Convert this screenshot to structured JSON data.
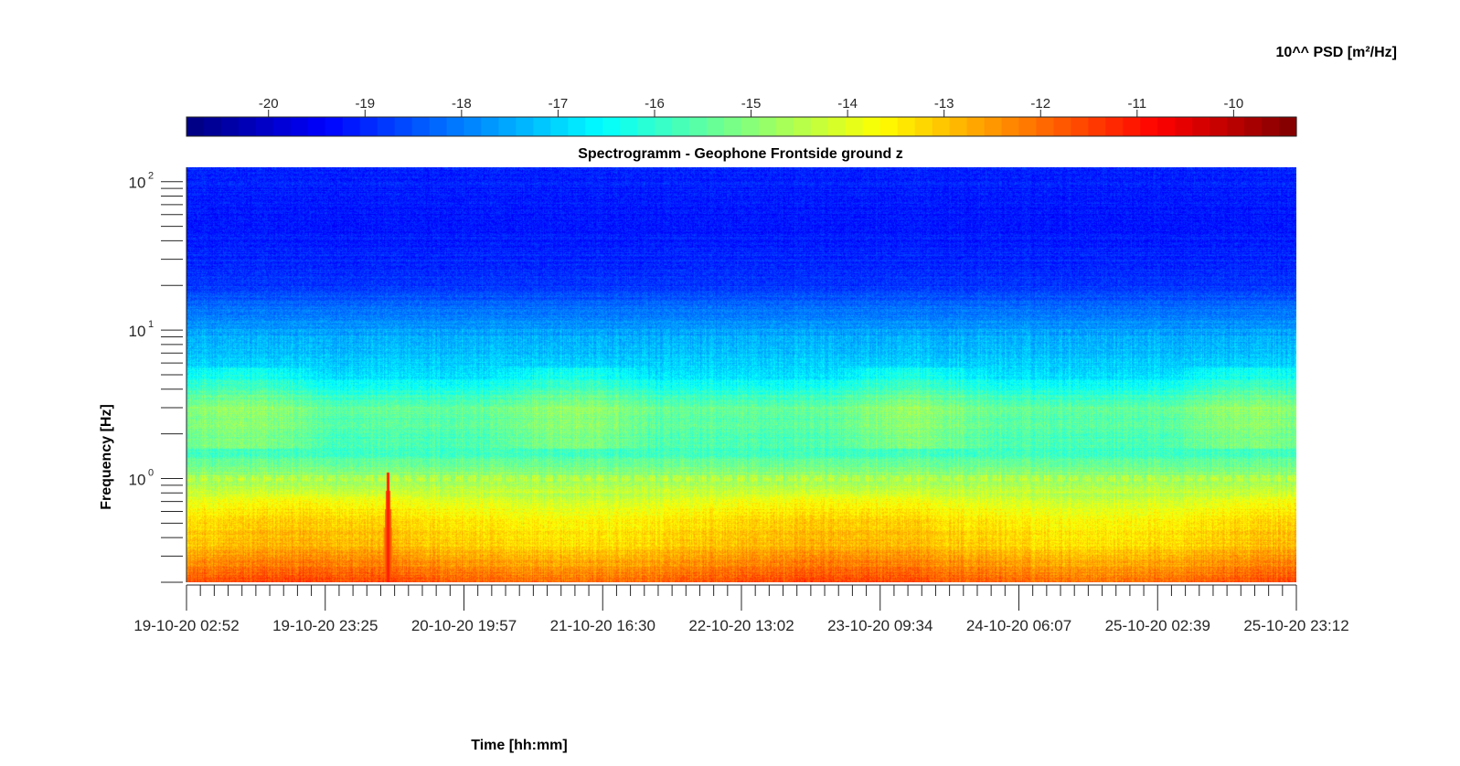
{
  "chart_data": {
    "type": "heatmap",
    "title": "Spectrogramm - Geophone Frontside ground z",
    "xlabel": "Time [hh:mm]",
    "ylabel": "Frequency [Hz]",
    "colorbar": {
      "label": "10^^ PSD [m²/Hz]",
      "ticks": [
        "-20",
        "-19",
        "-18",
        "-17",
        "-16",
        "-15",
        "-14",
        "-13",
        "-12",
        "-11",
        "-10"
      ],
      "tick_values": [
        -20,
        -19,
        -18,
        -17,
        -16,
        -15,
        -14,
        -13,
        -12,
        -11,
        -10
      ],
      "range": [
        -20.85,
        -9.35
      ],
      "colormap": "jet",
      "placement": "top"
    },
    "x_ticks": [
      "19-10-20 02:52",
      "19-10-20 23:25",
      "20-10-20 19:57",
      "21-10-20 16:30",
      "22-10-20 13:02",
      "23-10-20 09:34",
      "24-10-20 06:07",
      "25-10-20 02:39",
      "25-10-20 23:12"
    ],
    "y_axis": {
      "scale": "log",
      "range_hz": [
        0.2,
        125
      ],
      "ticks": [
        {
          "base": "10",
          "exp": "2",
          "value": 100
        },
        {
          "base": "10",
          "exp": "1",
          "value": 10
        },
        {
          "base": "10",
          "exp": "0",
          "value": 1
        }
      ]
    },
    "psd_profile": [
      {
        "freq_hz": 0.2,
        "log10_psd": -11.8
      },
      {
        "freq_hz": 0.35,
        "log10_psd": -13.0
      },
      {
        "freq_hz": 0.6,
        "log10_psd": -13.6
      },
      {
        "freq_hz": 1.0,
        "log10_psd": -14.8
      },
      {
        "freq_hz": 1.5,
        "log10_psd": -15.8
      },
      {
        "freq_hz": 3.0,
        "log10_psd": -15.4
      },
      {
        "freq_hz": 5.0,
        "log10_psd": -16.9
      },
      {
        "freq_hz": 10.0,
        "log10_psd": -17.6
      },
      {
        "freq_hz": 20.0,
        "log10_psd": -18.8
      },
      {
        "freq_hz": 50.0,
        "log10_psd": -19.2
      },
      {
        "freq_hz": 125.0,
        "log10_psd": -19.0
      }
    ],
    "events": [
      {
        "time": "20-10-20 03:00",
        "freq_max_hz": 1.1,
        "log10_psd": -11.0
      }
    ],
    "grid": false
  }
}
